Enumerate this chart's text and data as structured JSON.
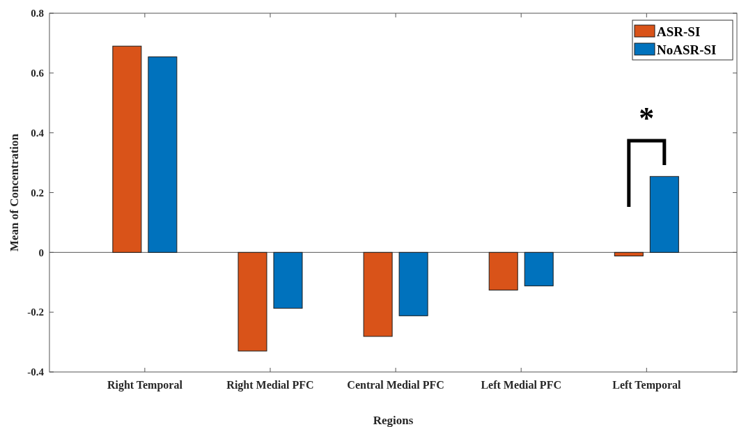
{
  "chart_data": {
    "type": "bar",
    "xlabel": "Regions",
    "ylabel": "Mean of Concentration",
    "categories": [
      "Right Temporal",
      "Right Medial PFC",
      "Central Medial PFC",
      "Left Medial PFC",
      "Left Temporal"
    ],
    "series": [
      {
        "name": "ASR-SI",
        "color": "#d95319",
        "values": [
          0.69,
          -0.33,
          -0.281,
          -0.126,
          -0.012
        ]
      },
      {
        "name": "NoASR-SI",
        "color": "#0072bd",
        "values": [
          0.654,
          -0.187,
          -0.212,
          -0.112,
          0.254
        ]
      }
    ],
    "ylim": [
      -0.4,
      0.8
    ],
    "yticks": [
      {
        "value": -0.4,
        "label": "-0.4"
      },
      {
        "value": -0.2,
        "label": "-0.2"
      },
      {
        "value": 0,
        "label": "0"
      },
      {
        "value": 0.2,
        "label": "0.2"
      },
      {
        "value": 0.4,
        "label": "0.4"
      },
      {
        "value": 0.6,
        "label": "0.6"
      },
      {
        "value": 0.8,
        "label": "0.8"
      }
    ],
    "legend": "top right",
    "annotations": [
      "*"
    ]
  }
}
